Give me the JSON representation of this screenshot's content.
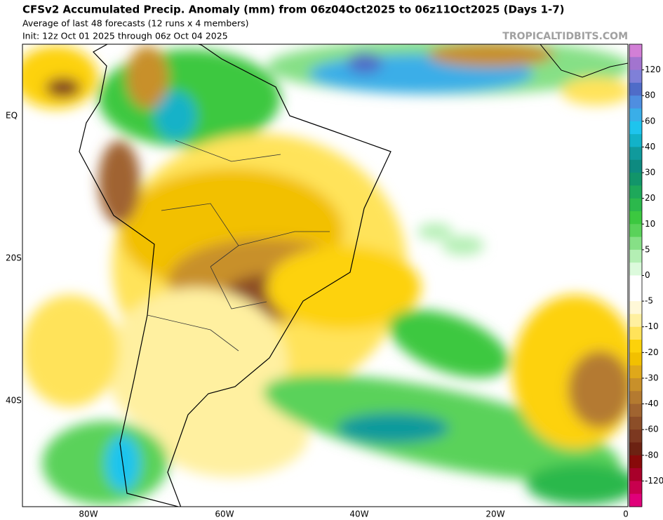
{
  "header": {
    "title": "CFSv2 Accumulated Precip. Anomaly (mm) from 06z04Oct2025 to 06z11Oct2025 (Days 1-7)",
    "subtitle": "Average of last 48 forecasts (12 runs x 4 members)",
    "init": "Init: 12z Oct 01 2025 through 06z Oct 04 2025",
    "watermark": "TROPICALTIDBITS.COM"
  },
  "map": {
    "lon_labels": [
      "80W",
      "60W",
      "40W",
      "20W",
      "0"
    ],
    "lat_labels": [
      "EQ",
      "20S",
      "40S"
    ]
  },
  "colorbar": {
    "ticks": [
      120,
      80,
      60,
      40,
      30,
      20,
      10,
      5,
      0,
      -5,
      -10,
      -20,
      -30,
      -40,
      -60,
      -80,
      -120
    ],
    "colors": [
      "#d27fd6",
      "#a274cf",
      "#7f80d8",
      "#4f6cc8",
      "#4f8ee0",
      "#3aaee8",
      "#1ec4ee",
      "#12b2c8",
      "#109a9c",
      "#0e8a80",
      "#12956a",
      "#1ea85a",
      "#2cb84c",
      "#3cc840",
      "#5ad25a",
      "#86e086",
      "#b4efb4",
      "#dcfadc",
      "#ffffff",
      "#ffffff",
      "#fff8d8",
      "#fff0a0",
      "#ffe35a",
      "#fdd20a",
      "#f2c000",
      "#dfa81a",
      "#c8902a",
      "#b47a30",
      "#a06430",
      "#8c4e28",
      "#7c3820",
      "#6c2212",
      "#880a0a",
      "#a8002a",
      "#c8004e",
      "#e0007a"
    ]
  }
}
